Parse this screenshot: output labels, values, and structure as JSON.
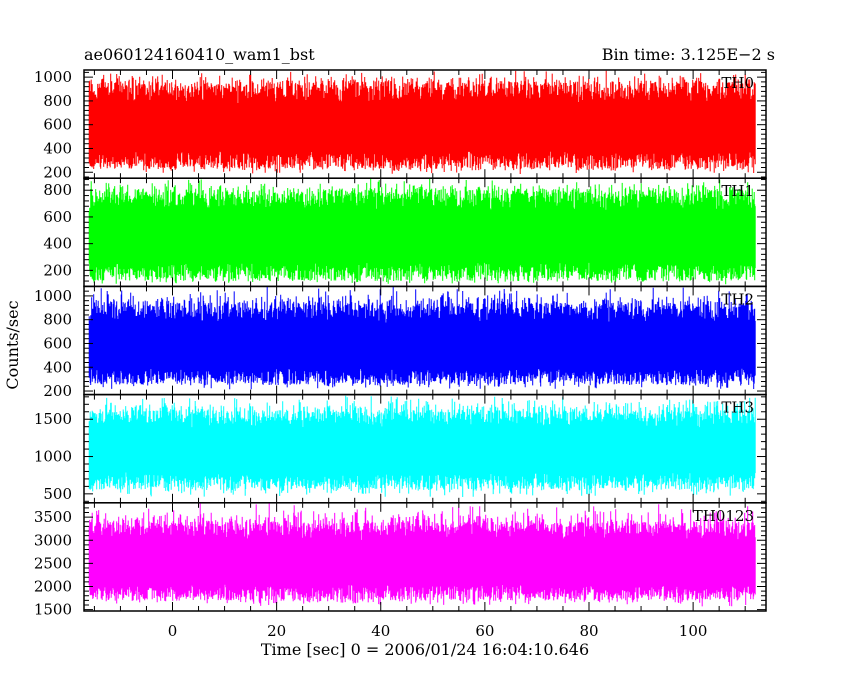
{
  "header": {
    "left_title": "ae060124160410_wam1_bst",
    "right_title": "Bin time: 3.125E−2 s"
  },
  "chart_data": {
    "type": "line",
    "xlabel": "Time [sec] 0 = 2006/01/24 16:04:10.646",
    "ylabel": "Counts/sec",
    "xlim": [
      -17,
      114
    ],
    "xticks": [
      0,
      20,
      40,
      60,
      80,
      100
    ],
    "x_range": [
      -16,
      112
    ],
    "bin_time_s": 0.03125,
    "panels": [
      {
        "name": "TH0",
        "color": "#ff0000",
        "ylim": [
          150,
          1060
        ],
        "yticks": [
          200,
          400,
          600,
          800,
          1000
        ],
        "mean": 560,
        "low": 230,
        "high": 960
      },
      {
        "name": "TH1",
        "color": "#00ff00",
        "ylim": [
          80,
          890
        ],
        "yticks": [
          200,
          400,
          600,
          800
        ],
        "mean": 440,
        "low": 120,
        "high": 810
      },
      {
        "name": "TH2",
        "color": "#0000ff",
        "ylim": [
          170,
          1080
        ],
        "yticks": [
          200,
          400,
          600,
          800,
          1000
        ],
        "mean": 560,
        "low": 260,
        "high": 940
      },
      {
        "name": "TH3",
        "color": "#00ffff",
        "ylim": [
          380,
          1830
        ],
        "yticks": [
          500,
          1000,
          1500
        ],
        "mean": 1080,
        "low": 560,
        "high": 1620
      },
      {
        "name": "TH0123",
        "color": "#ff00ff",
        "ylim": [
          1470,
          3810
        ],
        "yticks": [
          1500,
          2000,
          2500,
          3000,
          3500
        ],
        "mean": 2500,
        "low": 1700,
        "high": 3400
      }
    ]
  }
}
